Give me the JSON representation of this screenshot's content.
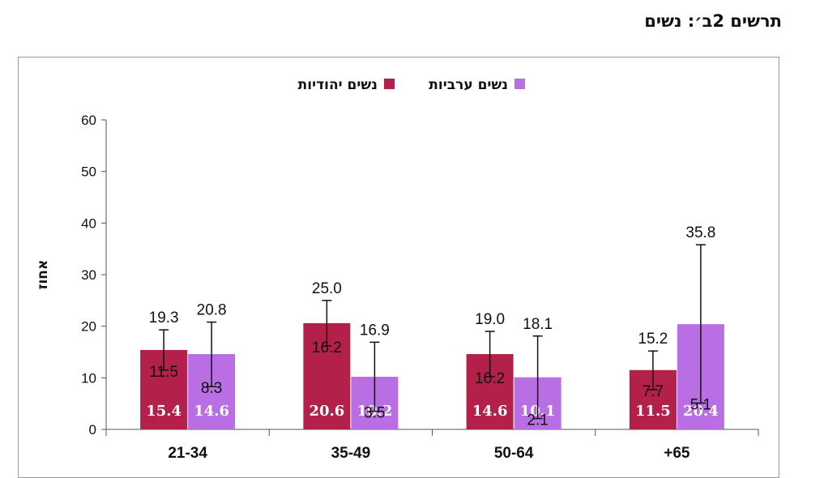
{
  "figure": {
    "title": "תרשים 2ב׳: נשים"
  },
  "chart_data": {
    "type": "bar",
    "categories": [
      "21-34",
      "35-49",
      "50-64",
      "+65"
    ],
    "ylabel": "אחוז",
    "ylim": [
      0,
      60
    ],
    "yticks": [
      0,
      10,
      20,
      30,
      40,
      50,
      60
    ],
    "legend_position": "top",
    "series": [
      {
        "name": "נשים יהודיות",
        "color": "#b3214a",
        "values": [
          15.4,
          20.6,
          14.6,
          11.5
        ],
        "value_labels": [
          "15.4",
          "20.6",
          "14.6",
          "11.5"
        ],
        "ci_upper": [
          19.3,
          25.0,
          19.0,
          15.2
        ],
        "ci_lower": [
          11.5,
          16.2,
          10.2,
          7.7
        ],
        "ci_upper_labels": [
          "19.3",
          "25.0",
          "19.0",
          "15.2"
        ],
        "ci_lower_labels": [
          "11.5",
          "16.2",
          "10.2",
          "7.7"
        ]
      },
      {
        "name": "נשים ערביות",
        "color": "#b96fe3",
        "values": [
          14.6,
          10.2,
          10.1,
          20.4
        ],
        "value_labels": [
          "14.6",
          "10.2",
          "10.1",
          "20.4"
        ],
        "ci_upper": [
          20.8,
          16.9,
          18.1,
          35.8
        ],
        "ci_lower": [
          8.3,
          3.5,
          2.1,
          5.1
        ],
        "ci_upper_labels": [
          "20.8",
          "16.9",
          "18.1",
          "35.8"
        ],
        "ci_lower_labels": [
          "8.3",
          "3.5",
          "2.1",
          "5.1"
        ]
      }
    ]
  }
}
